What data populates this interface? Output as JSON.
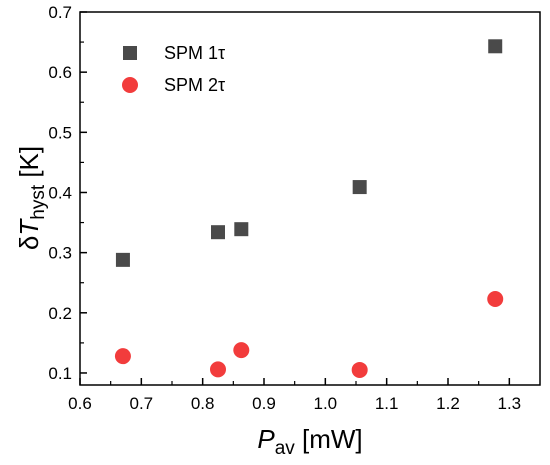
{
  "chart_data": {
    "type": "scatter",
    "xlabel_main": "P",
    "xlabel_sub": "av",
    "xlabel_unit": " [mW]",
    "ylabel_prefix": "δ",
    "ylabel_main": "T",
    "ylabel_sub": "hyst",
    "ylabel_unit": " [K]",
    "xlim": [
      0.6,
      1.35
    ],
    "ylim": [
      0.08,
      0.7
    ],
    "xticks": [
      0.6,
      0.7,
      0.8,
      0.9,
      1.0,
      1.1,
      1.2,
      1.3
    ],
    "xtick_labels": [
      "0.6",
      "0.7",
      "0.8",
      "0.9",
      "1.0",
      "1.1",
      "1.2",
      "1.3"
    ],
    "yticks": [
      0.1,
      0.2,
      0.3,
      0.4,
      0.5,
      0.6,
      0.7
    ],
    "ytick_labels": [
      "0.1",
      "0.2",
      "0.3",
      "0.4",
      "0.5",
      "0.6",
      "0.7"
    ],
    "grid": false,
    "legend_position": "top-left",
    "series": [
      {
        "name": "SPM 1τ",
        "marker": "square",
        "color": "#4a4a4a",
        "x": [
          0.67,
          0.825,
          0.863,
          1.056,
          1.277
        ],
        "y": [
          0.288,
          0.334,
          0.339,
          0.409,
          0.643
        ]
      },
      {
        "name": "SPM 2τ",
        "marker": "circle",
        "color": "#f23c3c",
        "x": [
          0.67,
          0.825,
          0.863,
          1.056,
          1.277
        ],
        "y": [
          0.128,
          0.106,
          0.138,
          0.105,
          0.223
        ]
      }
    ]
  }
}
